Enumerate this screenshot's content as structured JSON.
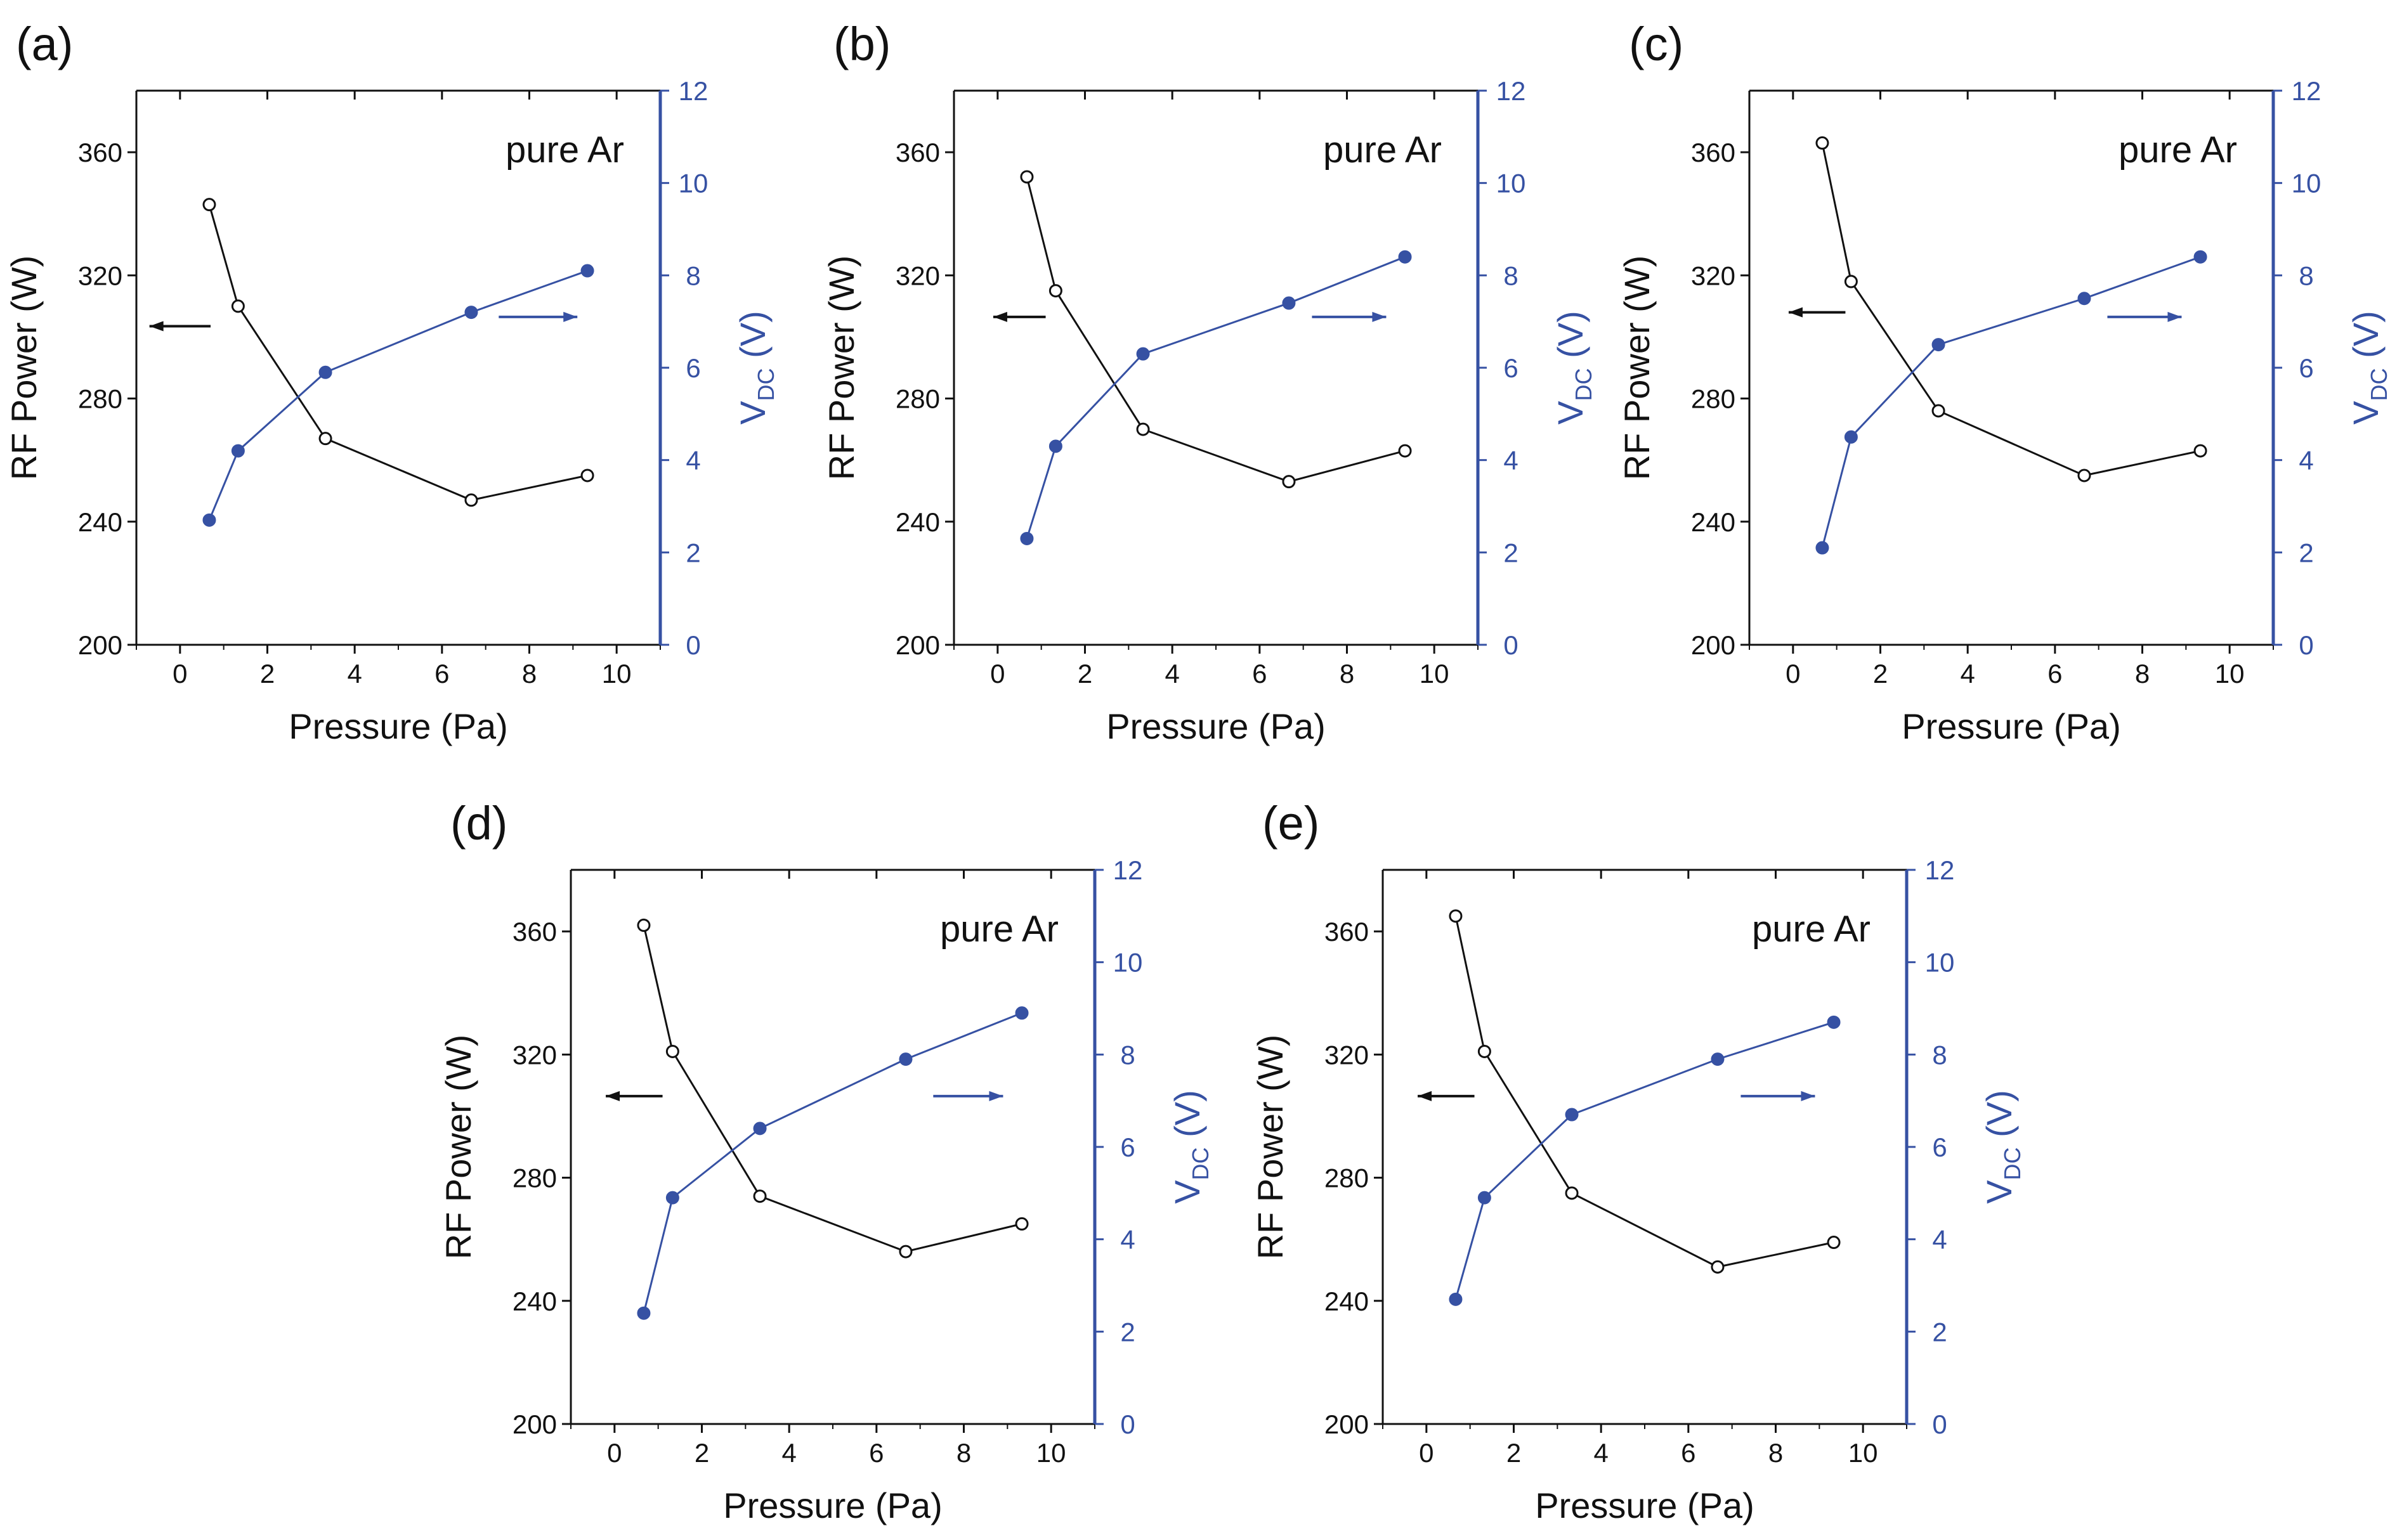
{
  "figure": {
    "colors": {
      "rf": "#111111",
      "vdc": "#3651a3",
      "frame": "#111111"
    }
  },
  "chart_data": [
    {
      "panel": "(a)",
      "type": "line",
      "annotation": "pure Ar",
      "xlabel": "Pressure (Pa)",
      "ylabel_left": "RF Power (W)",
      "ylabel_right_main": "V",
      "ylabel_right_sub": "DC",
      "ylabel_right_unit": " (V)",
      "xlim": [
        -1,
        11
      ],
      "xticks": [
        0,
        2,
        4,
        6,
        8,
        10
      ],
      "ylim_left": [
        200,
        380
      ],
      "yticks_left": [
        200,
        240,
        280,
        320,
        360
      ],
      "ylim_right": [
        0,
        12
      ],
      "yticks_right": [
        0,
        2,
        4,
        6,
        8,
        10,
        12
      ],
      "series": [
        {
          "name": "RF Power",
          "axis": "left",
          "marker": "open-circle",
          "x": [
            0.67,
            1.33,
            3.33,
            6.67,
            9.33
          ],
          "values": [
            343,
            310,
            267,
            247,
            255
          ]
        },
        {
          "name": "VDC",
          "axis": "right",
          "marker": "filled-circle",
          "x": [
            0.67,
            1.33,
            3.33,
            6.67,
            9.33
          ],
          "values": [
            2.7,
            4.2,
            5.9,
            7.2,
            8.1
          ]
        }
      ],
      "arrows": [
        {
          "series": "RF Power",
          "direction": "left",
          "x": [
            -0.7,
            0.7
          ],
          "y_right": 6.9
        },
        {
          "series": "VDC",
          "direction": "right",
          "x": [
            7.3,
            9.1
          ],
          "y_right": 7.1
        }
      ]
    },
    {
      "panel": "(b)",
      "type": "line",
      "annotation": "pure Ar",
      "xlabel": "Pressure (Pa)",
      "ylabel_left": "RF Power (W)",
      "ylabel_right_main": "V",
      "ylabel_right_sub": "DC",
      "ylabel_right_unit": " (V)",
      "xlim": [
        -1,
        11
      ],
      "xticks": [
        0,
        2,
        4,
        6,
        8,
        10
      ],
      "ylim_left": [
        200,
        380
      ],
      "yticks_left": [
        200,
        240,
        280,
        320,
        360
      ],
      "ylim_right": [
        0,
        12
      ],
      "yticks_right": [
        0,
        2,
        4,
        6,
        8,
        10,
        12
      ],
      "series": [
        {
          "name": "RF Power",
          "axis": "left",
          "marker": "open-circle",
          "x": [
            0.67,
            1.33,
            3.33,
            6.67,
            9.33
          ],
          "values": [
            352,
            315,
            270,
            253,
            263
          ]
        },
        {
          "name": "VDC",
          "axis": "right",
          "marker": "filled-circle",
          "x": [
            0.67,
            1.33,
            3.33,
            6.67,
            9.33
          ],
          "values": [
            2.3,
            4.3,
            6.3,
            7.4,
            8.4
          ]
        }
      ],
      "arrows": [
        {
          "series": "RF Power",
          "direction": "left",
          "x": [
            -0.1,
            1.1
          ],
          "y_right": 7.1
        },
        {
          "series": "VDC",
          "direction": "right",
          "x": [
            7.2,
            8.9
          ],
          "y_right": 7.1
        }
      ]
    },
    {
      "panel": "(c)",
      "type": "line",
      "annotation": "pure Ar",
      "xlabel": "Pressure (Pa)",
      "ylabel_left": "RF Power (W)",
      "ylabel_right_main": "V",
      "ylabel_right_sub": "DC",
      "ylabel_right_unit": " (V)",
      "xlim": [
        -1,
        11
      ],
      "xticks": [
        0,
        2,
        4,
        6,
        8,
        10
      ],
      "ylim_left": [
        200,
        380
      ],
      "yticks_left": [
        200,
        240,
        280,
        320,
        360
      ],
      "ylim_right": [
        0,
        12
      ],
      "yticks_right": [
        0,
        2,
        4,
        6,
        8,
        10,
        12
      ],
      "series": [
        {
          "name": "RF Power",
          "axis": "left",
          "marker": "open-circle",
          "x": [
            0.67,
            1.33,
            3.33,
            6.67,
            9.33
          ],
          "values": [
            363,
            318,
            276,
            255,
            263
          ]
        },
        {
          "name": "VDC",
          "axis": "right",
          "marker": "filled-circle",
          "x": [
            0.67,
            1.33,
            3.33,
            6.67,
            9.33
          ],
          "values": [
            2.1,
            4.5,
            6.5,
            7.5,
            8.4
          ]
        }
      ],
      "arrows": [
        {
          "series": "RF Power",
          "direction": "left",
          "x": [
            -0.1,
            1.2
          ],
          "y_right": 7.2
        },
        {
          "series": "VDC",
          "direction": "right",
          "x": [
            7.2,
            8.9
          ],
          "y_right": 7.1
        }
      ]
    },
    {
      "panel": "(d)",
      "type": "line",
      "annotation": "pure Ar",
      "xlabel": "Pressure (Pa)",
      "ylabel_left": "RF Power (W)",
      "ylabel_right_main": "V",
      "ylabel_right_sub": "DC",
      "ylabel_right_unit": " (V)",
      "xlim": [
        -1,
        11
      ],
      "xticks": [
        0,
        2,
        4,
        6,
        8,
        10
      ],
      "ylim_left": [
        200,
        380
      ],
      "yticks_left": [
        200,
        240,
        280,
        320,
        360
      ],
      "ylim_right": [
        0,
        12
      ],
      "yticks_right": [
        0,
        2,
        4,
        6,
        8,
        10,
        12
      ],
      "series": [
        {
          "name": "RF Power",
          "axis": "left",
          "marker": "open-circle",
          "x": [
            0.67,
            1.33,
            3.33,
            6.67,
            9.33
          ],
          "values": [
            362,
            321,
            274,
            256,
            265
          ]
        },
        {
          "name": "VDC",
          "axis": "right",
          "marker": "filled-circle",
          "x": [
            0.67,
            1.33,
            3.33,
            6.67,
            9.33
          ],
          "values": [
            2.4,
            4.9,
            6.4,
            7.9,
            8.9
          ]
        }
      ],
      "arrows": [
        {
          "series": "RF Power",
          "direction": "left",
          "x": [
            -0.2,
            1.1
          ],
          "y_right": 7.1
        },
        {
          "series": "VDC",
          "direction": "right",
          "x": [
            7.3,
            8.9
          ],
          "y_right": 7.1
        }
      ]
    },
    {
      "panel": "(e)",
      "type": "line",
      "annotation": "pure Ar",
      "xlabel": "Pressure (Pa)",
      "ylabel_left": "RF Power (W)",
      "ylabel_right_main": "V",
      "ylabel_right_sub": "DC",
      "ylabel_right_unit": " (V)",
      "xlim": [
        -1,
        11
      ],
      "xticks": [
        0,
        2,
        4,
        6,
        8,
        10
      ],
      "ylim_left": [
        200,
        380
      ],
      "yticks_left": [
        200,
        240,
        280,
        320,
        360
      ],
      "ylim_right": [
        0,
        12
      ],
      "yticks_right": [
        0,
        2,
        4,
        6,
        8,
        10,
        12
      ],
      "series": [
        {
          "name": "RF Power",
          "axis": "left",
          "marker": "open-circle",
          "x": [
            0.67,
            1.33,
            3.33,
            6.67,
            9.33
          ],
          "values": [
            365,
            321,
            275,
            251,
            259
          ]
        },
        {
          "name": "VDC",
          "axis": "right",
          "marker": "filled-circle",
          "x": [
            0.67,
            1.33,
            3.33,
            6.67,
            9.33
          ],
          "values": [
            2.7,
            4.9,
            6.7,
            7.9,
            8.7
          ]
        }
      ],
      "arrows": [
        {
          "series": "RF Power",
          "direction": "left",
          "x": [
            -0.2,
            1.1
          ],
          "y_right": 7.1
        },
        {
          "series": "VDC",
          "direction": "right",
          "x": [
            7.2,
            8.9
          ],
          "y_right": 7.1
        }
      ]
    }
  ]
}
